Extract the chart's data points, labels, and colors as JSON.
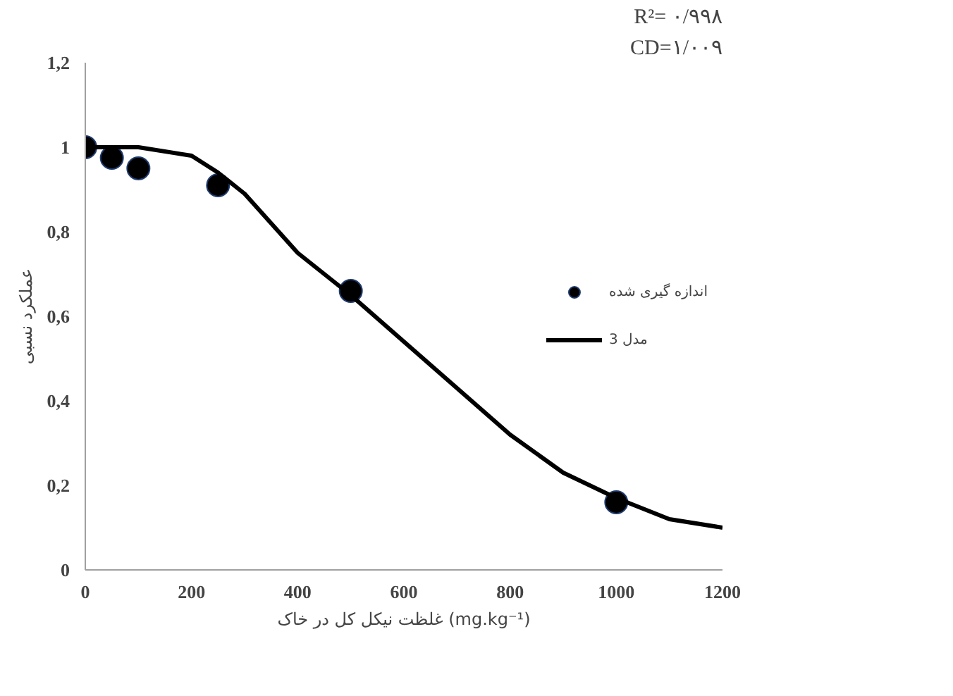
{
  "chart_data": {
    "type": "scatter",
    "xlabel": "غلظت نیکل کل در خاک (mg.kg⁻¹)",
    "ylabel": "عملکرد نسبی",
    "annotations": [
      "R²= ۰/۹۹۸",
      "CD=۱/۰۰۹"
    ],
    "series": [
      {
        "name": "اندازه گیری شده",
        "marker": "circle",
        "color": "#000000",
        "x": [
          0,
          50,
          100,
          250,
          500,
          1000
        ],
        "values": [
          1.0,
          0.975,
          0.95,
          0.91,
          0.66,
          0.16
        ]
      },
      {
        "name": "مدل 3",
        "type": "line",
        "marker": "none",
        "line_style": "solid",
        "color": "#000000",
        "x": [
          0,
          100,
          200,
          250,
          300,
          400,
          500,
          600,
          700,
          800,
          900,
          1000,
          1100,
          1200
        ],
        "values": [
          1.0,
          1.0,
          0.98,
          0.94,
          0.89,
          0.75,
          0.65,
          0.54,
          0.43,
          0.32,
          0.23,
          0.17,
          0.12,
          0.1
        ]
      }
    ],
    "xlim": [
      0,
      1200
    ],
    "xticks": [
      0,
      200,
      400,
      600,
      800,
      1000,
      1200
    ],
    "ylim": [
      0,
      1.2
    ],
    "yticks": [
      0,
      {
        "value": 0.2,
        "label": "0,2"
      },
      {
        "value": 0.4,
        "label": "0,4"
      },
      {
        "value": 0.6,
        "label": "0,6"
      },
      {
        "value": 0.8,
        "label": "0,8"
      },
      1,
      {
        "value": 1.2,
        "label": "1,2"
      }
    ],
    "grid": false,
    "legend": "right"
  }
}
